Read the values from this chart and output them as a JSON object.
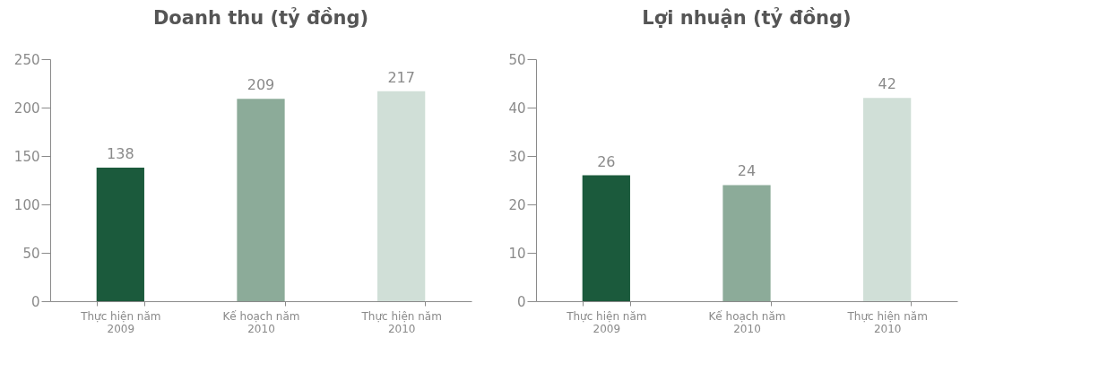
{
  "chart_data": [
    {
      "type": "bar",
      "title": "Doanh thu (tỷ đồng)",
      "categories": [
        "Thực hiện năm\n2009",
        "Kế hoạch năm\n2010",
        "Thực hiện năm\n2010"
      ],
      "values": [
        138,
        209,
        217
      ],
      "colors": [
        "#1b5a3c",
        "#8cab99",
        "#d0dfd7"
      ],
      "ylim": [
        0,
        250
      ],
      "yticks": [
        0,
        50,
        100,
        150,
        200,
        250
      ],
      "data_labels": true,
      "grid": false,
      "legend": false
    },
    {
      "type": "bar",
      "title": "Lợi nhuận (tỷ đồng)",
      "categories": [
        "Thực hiện năm\n2009",
        "Kế hoạch năm\n2010",
        "Thực hiện năm\n2010"
      ],
      "values": [
        26,
        24,
        42
      ],
      "colors": [
        "#1b5a3c",
        "#8cab99",
        "#d0dfd7"
      ],
      "ylim": [
        0,
        50
      ],
      "yticks": [
        0,
        10,
        20,
        30,
        40,
        50
      ],
      "data_labels": true,
      "grid": false,
      "legend": false
    }
  ]
}
